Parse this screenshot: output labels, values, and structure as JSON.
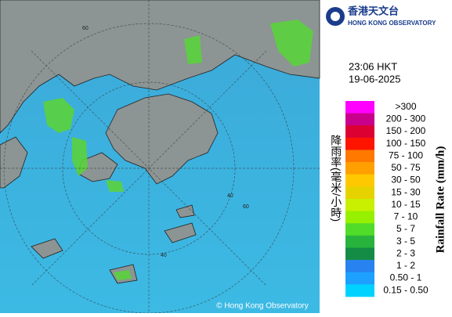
{
  "header": {
    "org_zh": "香港天文台",
    "org_en": "HONG KONG OBSERVATORY",
    "time": "23:06 HKT",
    "date": "19-06-2025"
  },
  "map": {
    "copyright": "© Hong Kong Observatory",
    "ring_labels": [
      "60",
      "40",
      "60",
      "40"
    ]
  },
  "legend": {
    "title_zh": "降雨率(毫米/小時)",
    "title_en": "Rainfall Rate (mm/h)",
    "items": [
      {
        "label": ">300",
        "color": "#ff00ff"
      },
      {
        "label": "200 - 300",
        "color": "#c8008c"
      },
      {
        "label": "150 - 200",
        "color": "#dc0032"
      },
      {
        "label": "100 - 150",
        "color": "#ff1400"
      },
      {
        "label": "75 - 100",
        "color": "#ff7800"
      },
      {
        "label": "50 - 75",
        "color": "#ffa000"
      },
      {
        "label": "30 - 50",
        "color": "#ffc800"
      },
      {
        "label": "15 - 30",
        "color": "#e6d200"
      },
      {
        "label": "10 - 15",
        "color": "#c8f000"
      },
      {
        "label": "7 - 10",
        "color": "#96f000"
      },
      {
        "label": "5 - 7",
        "color": "#50dc28"
      },
      {
        "label": "3 - 5",
        "color": "#28b43c"
      },
      {
        "label": "2 - 3",
        "color": "#148c46"
      },
      {
        "label": "1 - 2",
        "color": "#2882f0"
      },
      {
        "label": "0.50 - 1",
        "color": "#1ea0ff"
      },
      {
        "label": "0.15 - 0.50",
        "color": "#00d2ff"
      }
    ]
  }
}
